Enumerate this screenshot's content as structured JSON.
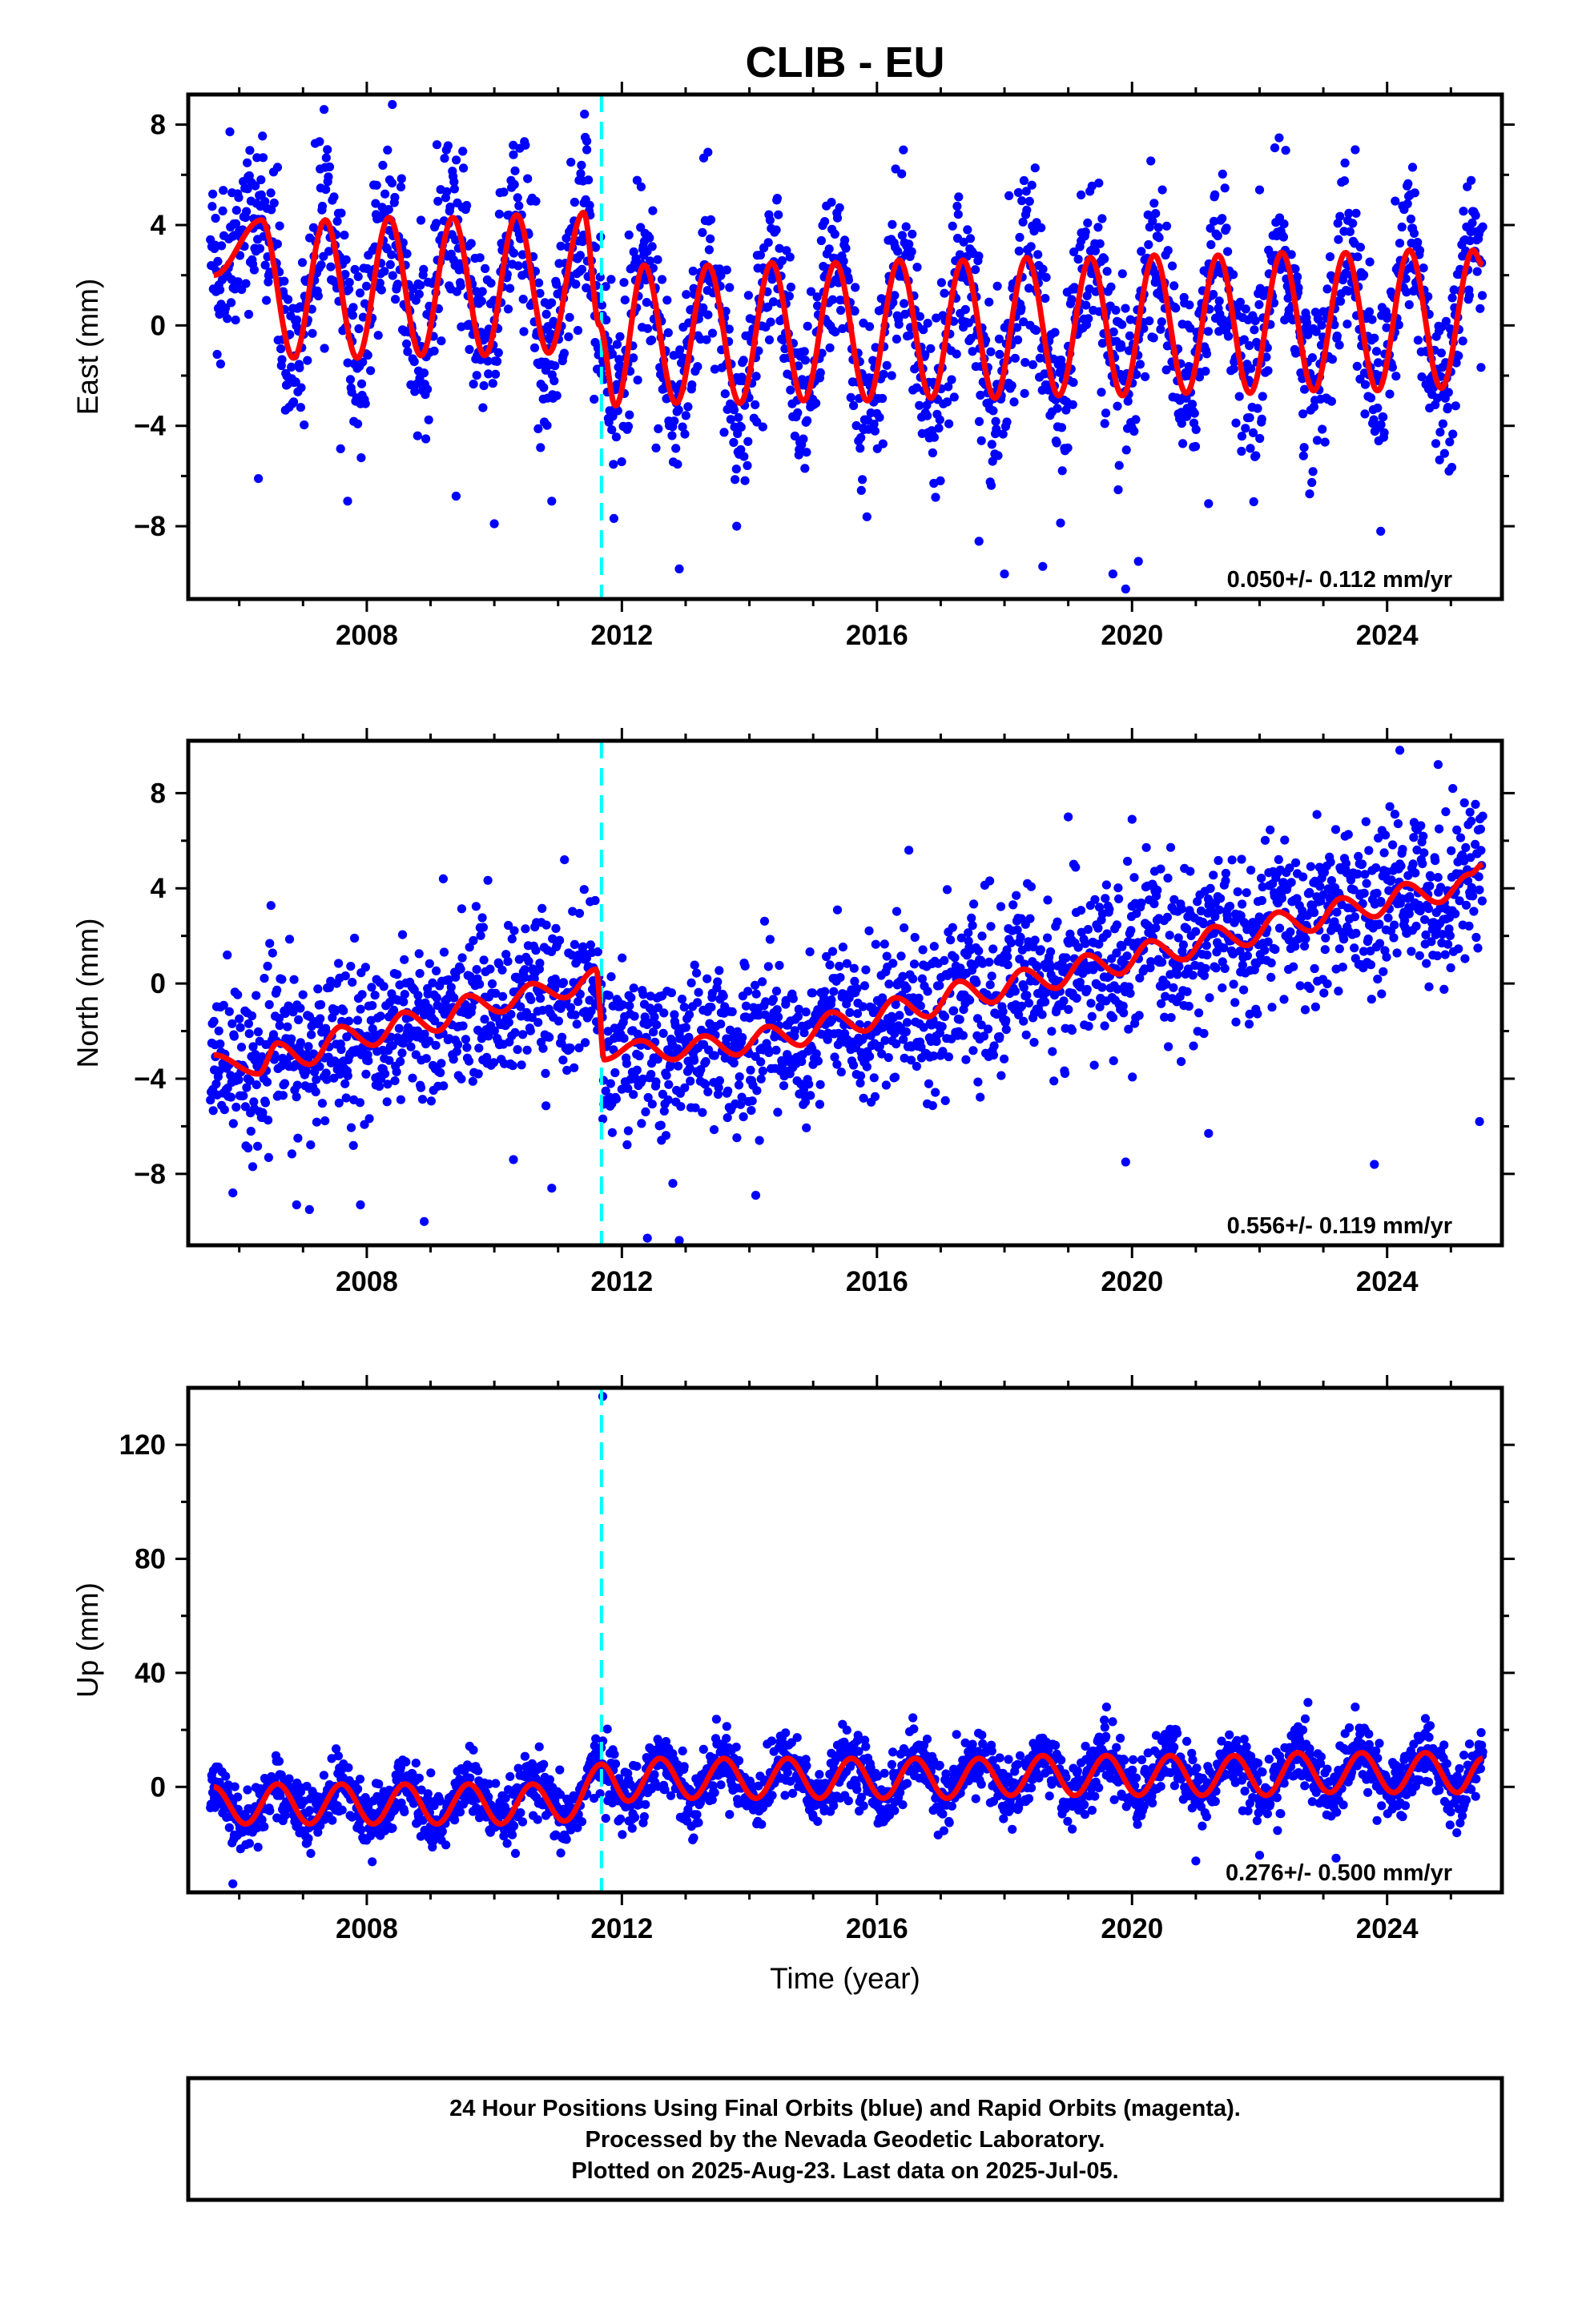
{
  "chart_data": [
    {
      "type": "scatter",
      "title": "CLIB - EU",
      "ylabel": "East (mm)",
      "xlabel": "",
      "xlim": [
        2005.2,
        2025.8
      ],
      "ylim": [
        -10.9,
        9.2
      ],
      "yticks": [
        "8",
        "4",
        "0",
        "−4",
        "−8"
      ],
      "ytick_values": [
        8,
        4,
        0,
        -4,
        -8
      ],
      "xticks": [
        "2008",
        "2012",
        "2016",
        "2020",
        "2024"
      ],
      "xtick_values": [
        2008,
        2012,
        2016,
        2020,
        2024
      ],
      "grid": false,
      "legend": "none",
      "rate_label": "0.050+/- 0.112 mm/yr",
      "step_marker_year": 2011.68,
      "data_span": [
        2005.55,
        2025.5
      ],
      "model": {
        "name": "model fit",
        "x": [
          2005.6,
          2006.35,
          2006.85,
          2007.35,
          2007.85,
          2008.35,
          2008.85,
          2009.35,
          2009.85,
          2010.35,
          2010.85,
          2011.4,
          2011.65,
          2011.9,
          2012.35,
          2012.85,
          2013.35,
          2013.85,
          2014.35,
          2014.85,
          2015.35,
          2015.85,
          2016.35,
          2016.85,
          2017.35,
          2017.85,
          2018.35,
          2018.85,
          2019.35,
          2019.85,
          2020.35,
          2020.85,
          2021.35,
          2021.85,
          2022.35,
          2022.85,
          2023.35,
          2023.85,
          2024.35,
          2024.85,
          2025.35,
          2025.5
        ],
        "y": [
          2.0,
          4.2,
          -1.3,
          4.2,
          -1.3,
          4.3,
          -1.2,
          4.3,
          -1.2,
          4.4,
          -1.1,
          4.5,
          0.0,
          -3.2,
          2.4,
          -3.1,
          2.4,
          -3.1,
          2.5,
          -3.0,
          2.5,
          -3.0,
          2.6,
          -2.9,
          2.6,
          -2.9,
          2.7,
          -2.8,
          2.7,
          -2.8,
          2.8,
          -2.7,
          2.8,
          -2.7,
          2.9,
          -2.6,
          2.9,
          -2.6,
          3.0,
          -2.5,
          3.0,
          2.4
        ]
      },
      "points": {
        "name": "daily positions",
        "color": "#0000ff",
        "outliers_x": [
          2006.3,
          2006.6,
          2007.7,
          2008.4,
          2009.1,
          2009.4,
          2010.0,
          2010.3,
          2010.9,
          2011.2,
          2011.45,
          2012.9,
          2013.35,
          2013.8,
          2017.6,
          2018.0,
          2018.6,
          2019.2,
          2019.7,
          2019.9,
          2020.1,
          2021.2,
          2022.0,
          2023.5,
          2023.9,
          2024.4
        ],
        "outliers_y": [
          -6.1,
          6.3,
          -7.0,
          8.8,
          7.2,
          -6.8,
          -7.9,
          6.8,
          -7.0,
          6.5,
          7.0,
          -9.7,
          6.9,
          -8.0,
          -8.6,
          -9.9,
          -9.6,
          5.2,
          -9.9,
          -10.5,
          -9.4,
          -7.1,
          5.4,
          7.0,
          -8.2,
          6.3
        ]
      },
      "series_colors": {
        "points": "#0000ff",
        "model": "#ff0000",
        "step_marker": "#00ffff"
      }
    },
    {
      "type": "scatter",
      "title": "",
      "ylabel": "North (mm)",
      "xlabel": "",
      "xlim": [
        2005.2,
        2025.8
      ],
      "ylim": [
        -11.0,
        10.2
      ],
      "yticks": [
        "8",
        "4",
        "0",
        "−4",
        "−8"
      ],
      "ytick_values": [
        8,
        4,
        0,
        -4,
        -8
      ],
      "xticks": [
        "2008",
        "2012",
        "2016",
        "2020",
        "2024"
      ],
      "xtick_values": [
        2008,
        2012,
        2016,
        2020,
        2024
      ],
      "grid": false,
      "legend": "none",
      "rate_label": "0.556+/- 0.119 mm/yr",
      "step_marker_year": 2011.68,
      "data_span": [
        2005.55,
        2025.5
      ],
      "model": {
        "name": "model fit",
        "x": [
          2005.6,
          2006.3,
          2006.6,
          2007.1,
          2007.6,
          2008.1,
          2008.6,
          2009.1,
          2009.6,
          2010.1,
          2010.6,
          2011.1,
          2011.6,
          2011.72,
          2012.3,
          2012.8,
          2013.3,
          2013.8,
          2014.3,
          2014.8,
          2015.3,
          2015.8,
          2016.3,
          2016.8,
          2017.3,
          2017.8,
          2018.3,
          2018.8,
          2019.3,
          2019.8,
          2020.3,
          2020.8,
          2021.3,
          2021.8,
          2022.3,
          2022.8,
          2023.3,
          2023.8,
          2024.3,
          2024.8,
          2025.3,
          2025.5
        ],
        "y": [
          -3.0,
          -3.8,
          -2.5,
          -3.4,
          -1.8,
          -2.6,
          -1.2,
          -2.0,
          -0.5,
          -1.2,
          0.0,
          -0.6,
          0.6,
          -3.2,
          -2.4,
          -3.2,
          -2.2,
          -3.0,
          -1.8,
          -2.6,
          -1.2,
          -2.0,
          -0.6,
          -1.4,
          0.1,
          -0.8,
          0.6,
          -0.2,
          1.2,
          0.4,
          1.8,
          1.0,
          2.4,
          1.6,
          3.0,
          2.2,
          3.6,
          2.8,
          4.2,
          3.4,
          4.6,
          5.0
        ]
      },
      "points": {
        "name": "daily positions",
        "color": "#0000ff",
        "outliers_x": [
          2005.9,
          2006.9,
          2007.1,
          2007.9,
          2008.9,
          2009.2,
          2010.3,
          2010.9,
          2011.1,
          2012.4,
          2012.8,
          2012.9,
          2014.1,
          2016.5,
          2019.0,
          2019.9,
          2020.0,
          2021.2,
          2022.9,
          2023.8,
          2024.2,
          2024.8,
          2025.3,
          2025.45
        ],
        "outliers_y": [
          -8.8,
          -9.3,
          -9.5,
          -9.3,
          -10.0,
          4.4,
          -7.4,
          -8.6,
          5.2,
          -10.7,
          -8.4,
          -10.9,
          -8.9,
          5.6,
          7.0,
          -7.5,
          6.9,
          -6.3,
          7.1,
          -7.6,
          9.8,
          9.2,
          7.2,
          -5.8
        ]
      },
      "series_colors": {
        "points": "#0000ff",
        "model": "#ff0000",
        "step_marker": "#00ffff"
      }
    },
    {
      "type": "scatter",
      "title": "",
      "ylabel": "Up (mm)",
      "xlabel": "Time (year)",
      "xlim": [
        2005.2,
        2025.8
      ],
      "ylim": [
        -37,
        140
      ],
      "yticks": [
        "120",
        "80",
        "40",
        "0"
      ],
      "ytick_values": [
        120,
        80,
        40,
        0
      ],
      "xticks": [
        "2008",
        "2012",
        "2016",
        "2020",
        "2024"
      ],
      "xtick_values": [
        2008,
        2012,
        2016,
        2020,
        2024
      ],
      "grid": false,
      "legend": "none",
      "rate_label": "0.276+/- 0.500 mm/yr",
      "step_marker_year": 2011.68,
      "data_span": [
        2005.55,
        2025.5
      ],
      "model": {
        "name": "model fit",
        "x": [
          2005.6,
          2006.1,
          2006.6,
          2007.1,
          2007.6,
          2008.1,
          2008.6,
          2009.1,
          2009.6,
          2010.1,
          2010.6,
          2011.1,
          2011.68,
          2012.1,
          2012.6,
          2013.1,
          2013.6,
          2014.1,
          2014.6,
          2015.1,
          2015.6,
          2016.1,
          2016.6,
          2017.1,
          2017.6,
          2018.1,
          2018.6,
          2019.1,
          2019.6,
          2020.1,
          2020.6,
          2021.1,
          2021.6,
          2022.1,
          2022.6,
          2023.1,
          2023.6,
          2024.1,
          2024.6,
          2025.1,
          2025.5
        ],
        "y": [
          0,
          -13,
          1,
          -13,
          1,
          -13,
          1,
          -13,
          1,
          -13,
          1,
          -12,
          8,
          -5,
          10,
          -4,
          10,
          -4,
          10,
          -4,
          10,
          -4,
          10,
          -4,
          10,
          -3,
          11,
          -3,
          11,
          -3,
          11,
          -3,
          11,
          -3,
          12,
          -2,
          12,
          -2,
          12,
          -2,
          10
        ]
      },
      "points": {
        "name": "daily positions",
        "color": "#0000ff",
        "outliers_x": [
          2005.9,
          2011.7,
          2019.6,
          2021.0,
          2022.0,
          2023.2,
          2023.5,
          2024.6
        ],
        "outliers_y": [
          -34,
          137,
          28,
          -26,
          -24,
          -25,
          28,
          24
        ]
      },
      "series_colors": {
        "points": "#0000ff",
        "model": "#ff0000",
        "step_marker": "#00ffff"
      }
    }
  ],
  "footer": {
    "line1": "24 Hour Positions Using Final Orbits (blue) and Rapid Orbits (magenta).",
    "line2": "Processed by the Nevada Geodetic Laboratory.",
    "line3": "Plotted on 2025-Aug-23. Last data on 2025-Jul-05."
  }
}
